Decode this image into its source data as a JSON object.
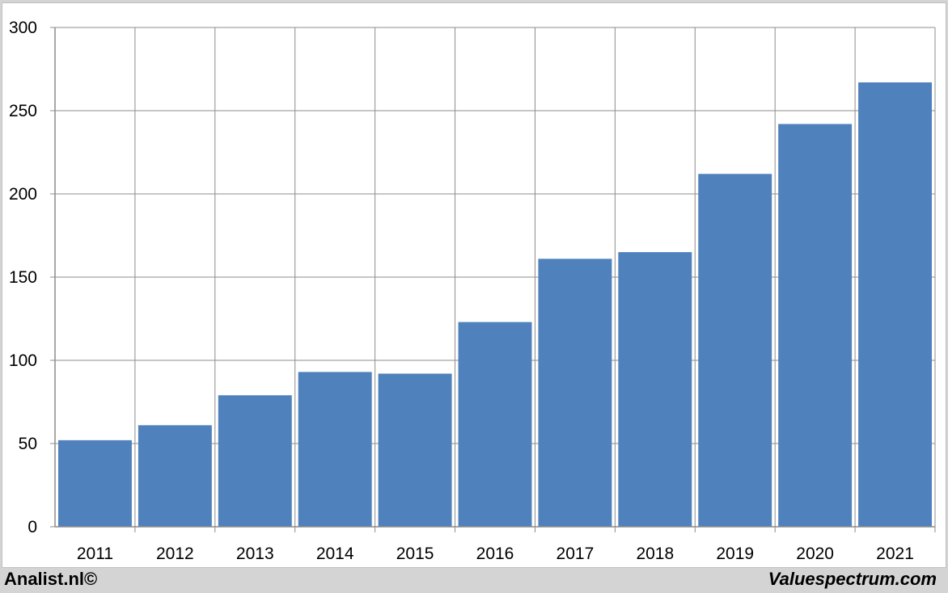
{
  "chart_data": {
    "type": "bar",
    "categories": [
      "2011",
      "2012",
      "2013",
      "2014",
      "2015",
      "2016",
      "2017",
      "2018",
      "2019",
      "2020",
      "2021"
    ],
    "values": [
      52,
      61,
      79,
      93,
      92,
      123,
      161,
      165,
      212,
      242,
      267
    ],
    "ylim": [
      0,
      300
    ],
    "yticks": [
      0,
      50,
      100,
      150,
      200,
      250,
      300
    ],
    "grid": true,
    "bar_color": "#4f81bd",
    "title": "",
    "xlabel": "",
    "ylabel": ""
  },
  "footer": {
    "left_text": "Analist.nl©",
    "right_text": "Valuespectrum.com"
  }
}
